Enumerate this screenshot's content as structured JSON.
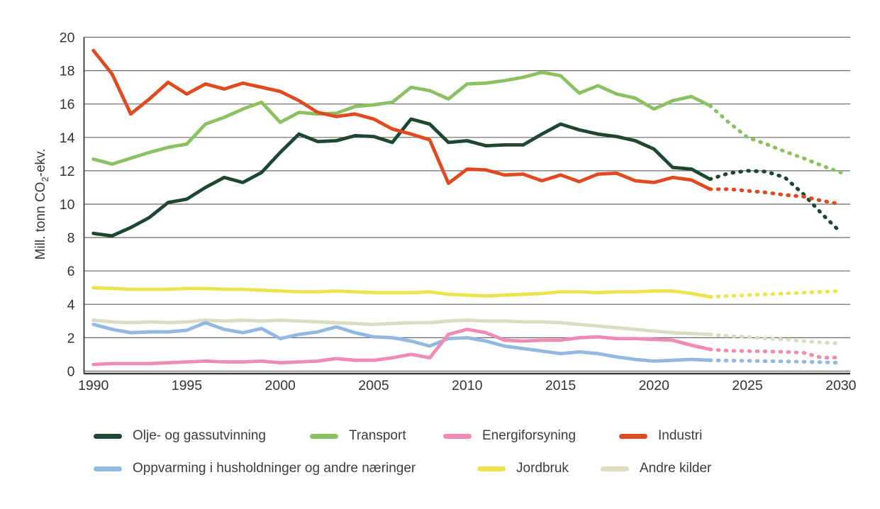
{
  "chart_data": {
    "type": "line",
    "title": "",
    "x_start": 1990,
    "historical_end": 2023,
    "x_end": 2030,
    "ylim": [
      0,
      20
    ],
    "grid": "horizontal",
    "projection_style": "dotted",
    "legend_position": "bottom",
    "series": [
      {
        "name": "Olje- og gassutvinning",
        "color": "#1d4733",
        "values_1990_2023": [
          8.25,
          8.1,
          8.6,
          9.2,
          10.1,
          10.3,
          11.0,
          11.6,
          11.3,
          11.9,
          13.1,
          14.2,
          13.75,
          13.8,
          14.1,
          14.05,
          13.7,
          15.1,
          14.8,
          13.7,
          13.8,
          13.5,
          13.55,
          13.55,
          14.2,
          14.8,
          14.45,
          14.2,
          14.05,
          13.8,
          13.3,
          12.2,
          12.1,
          11.5
        ],
        "projection_2023_2030": [
          11.5,
          11.85,
          12.0,
          11.95,
          11.6,
          10.6,
          9.4,
          8.3
        ]
      },
      {
        "name": "Transport",
        "color": "#8cc163",
        "values_1990_2023": [
          12.7,
          12.4,
          12.75,
          13.1,
          13.4,
          13.6,
          14.8,
          15.2,
          15.7,
          16.1,
          14.9,
          15.5,
          15.4,
          15.45,
          15.85,
          15.95,
          16.1,
          17.0,
          16.8,
          16.3,
          17.2,
          17.25,
          17.4,
          17.6,
          17.9,
          17.7,
          16.65,
          17.1,
          16.6,
          16.35,
          15.7,
          16.2,
          16.45,
          15.9
        ],
        "projection_2023_2030": [
          15.9,
          14.9,
          14.0,
          13.6,
          13.15,
          12.75,
          12.3,
          11.9
        ]
      },
      {
        "name": "Energiforsyning",
        "color": "#ef8bb5",
        "values_1990_2023": [
          0.4,
          0.45,
          0.45,
          0.45,
          0.5,
          0.55,
          0.6,
          0.55,
          0.55,
          0.6,
          0.5,
          0.55,
          0.6,
          0.75,
          0.65,
          0.65,
          0.8,
          1.0,
          0.8,
          2.2,
          2.5,
          2.3,
          1.85,
          1.8,
          1.85,
          1.85,
          2.0,
          2.05,
          1.95,
          1.95,
          1.9,
          1.85,
          1.55,
          1.3
        ],
        "projection_2023_2030": [
          1.3,
          1.22,
          1.2,
          1.18,
          1.15,
          1.1,
          0.8,
          0.82
        ]
      },
      {
        "name": "Industri",
        "color": "#e04a20",
        "values_1990_2023": [
          19.2,
          17.8,
          15.4,
          16.3,
          17.3,
          16.6,
          17.2,
          16.9,
          17.25,
          17.0,
          16.75,
          16.2,
          15.5,
          15.25,
          15.4,
          15.1,
          14.5,
          14.2,
          13.85,
          11.25,
          12.1,
          12.05,
          11.75,
          11.8,
          11.4,
          11.75,
          11.35,
          11.8,
          11.85,
          11.4,
          11.3,
          11.6,
          11.45,
          10.9
        ],
        "projection_2023_2030": [
          10.9,
          10.9,
          10.8,
          10.7,
          10.55,
          10.45,
          10.2,
          10.0
        ]
      },
      {
        "name": "Oppvarming i husholdninger og andre næringer",
        "color": "#92b9e2",
        "values_1990_2023": [
          2.8,
          2.5,
          2.3,
          2.35,
          2.35,
          2.45,
          2.9,
          2.5,
          2.3,
          2.55,
          1.95,
          2.2,
          2.35,
          2.65,
          2.3,
          2.05,
          2.0,
          1.8,
          1.5,
          1.95,
          2.0,
          1.8,
          1.5,
          1.35,
          1.2,
          1.05,
          1.15,
          1.05,
          0.85,
          0.7,
          0.6,
          0.65,
          0.7,
          0.65
        ],
        "projection_2023_2030": [
          0.65,
          0.63,
          0.62,
          0.6,
          0.58,
          0.56,
          0.53,
          0.5
        ]
      },
      {
        "name": "Jordbruk",
        "color": "#ece44e",
        "values_1990_2023": [
          5.0,
          4.95,
          4.9,
          4.9,
          4.9,
          4.95,
          4.95,
          4.9,
          4.9,
          4.85,
          4.8,
          4.75,
          4.75,
          4.8,
          4.75,
          4.7,
          4.7,
          4.7,
          4.75,
          4.6,
          4.55,
          4.5,
          4.55,
          4.6,
          4.65,
          4.75,
          4.75,
          4.7,
          4.75,
          4.75,
          4.8,
          4.8,
          4.65,
          4.45
        ],
        "projection_2023_2030": [
          4.45,
          4.5,
          4.55,
          4.6,
          4.65,
          4.7,
          4.75,
          4.8
        ]
      },
      {
        "name": "Andre kilder",
        "color": "#dbdcc1",
        "values_1990_2023": [
          3.05,
          2.95,
          2.9,
          2.95,
          2.9,
          2.95,
          3.05,
          3.0,
          3.05,
          3.0,
          3.05,
          3.0,
          2.95,
          2.9,
          2.85,
          2.8,
          2.85,
          2.9,
          2.9,
          3.0,
          3.05,
          3.0,
          3.0,
          2.95,
          2.95,
          2.9,
          2.8,
          2.7,
          2.6,
          2.5,
          2.4,
          2.3,
          2.25,
          2.2
        ],
        "projection_2023_2030": [
          2.2,
          2.1,
          2.05,
          1.95,
          1.9,
          1.8,
          1.72,
          1.65
        ]
      }
    ]
  },
  "y_axis": {
    "title_prefix": "Mill. tonn CO",
    "title_sub": "2",
    "title_suffix": "-ekv.",
    "tick_labels": [
      "0",
      "2",
      "4",
      "6",
      "8",
      "10",
      "12",
      "14",
      "16",
      "18",
      "20"
    ],
    "tick_values": [
      0,
      2,
      4,
      6,
      8,
      10,
      12,
      14,
      16,
      18,
      20
    ]
  },
  "x_axis": {
    "tick_labels": [
      "1990",
      "1995",
      "2000",
      "2005",
      "2010",
      "2015",
      "2020",
      "2025",
      "2030"
    ],
    "tick_values": [
      1990,
      1995,
      2000,
      2005,
      2010,
      2015,
      2020,
      2025,
      2030
    ]
  },
  "legend": {
    "rows": [
      {
        "items": [
          0,
          1,
          2,
          3
        ]
      },
      {
        "items": [
          4,
          5,
          6
        ]
      }
    ]
  }
}
